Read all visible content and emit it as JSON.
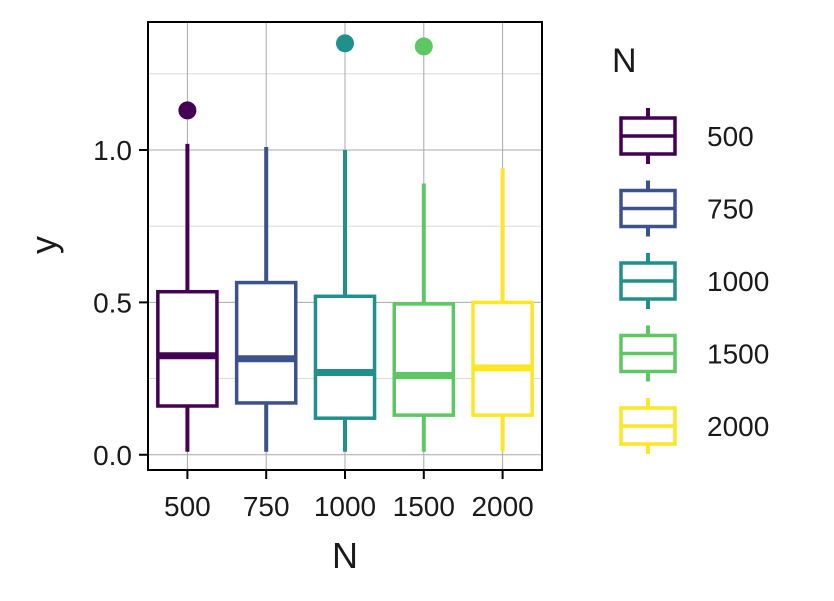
{
  "chart_data": {
    "type": "boxplot",
    "title": "",
    "xlabel": "N",
    "ylabel": "y",
    "ylim": [
      -0.05,
      1.42
    ],
    "yticks": [
      0.0,
      0.5,
      1.0
    ],
    "ytick_labels": [
      "0.0",
      "0.5",
      "1.0"
    ],
    "grid": true,
    "legend": {
      "title": "N",
      "position": "right"
    },
    "categories": [
      "500",
      "750",
      "1000",
      "1500",
      "2000"
    ],
    "series": [
      {
        "name": "500",
        "color": "#440154",
        "min": 0.01,
        "q1": 0.16,
        "median": 0.325,
        "q3": 0.535,
        "max": 1.02,
        "outliers": [
          1.13
        ]
      },
      {
        "name": "750",
        "color": "#3B528B",
        "min": 0.01,
        "q1": 0.17,
        "median": 0.315,
        "q3": 0.565,
        "max": 1.01,
        "outliers": []
      },
      {
        "name": "1000",
        "color": "#21908C",
        "min": 0.01,
        "q1": 0.12,
        "median": 0.27,
        "q3": 0.52,
        "max": 1.0,
        "outliers": [
          1.35
        ]
      },
      {
        "name": "1500",
        "color": "#5DC863",
        "min": 0.01,
        "q1": 0.13,
        "median": 0.26,
        "q3": 0.495,
        "max": 0.89,
        "outliers": [
          1.34
        ]
      },
      {
        "name": "2000",
        "color": "#FDE725",
        "min": 0.01,
        "q1": 0.13,
        "median": 0.285,
        "q3": 0.5,
        "max": 0.94,
        "outliers": []
      }
    ]
  }
}
